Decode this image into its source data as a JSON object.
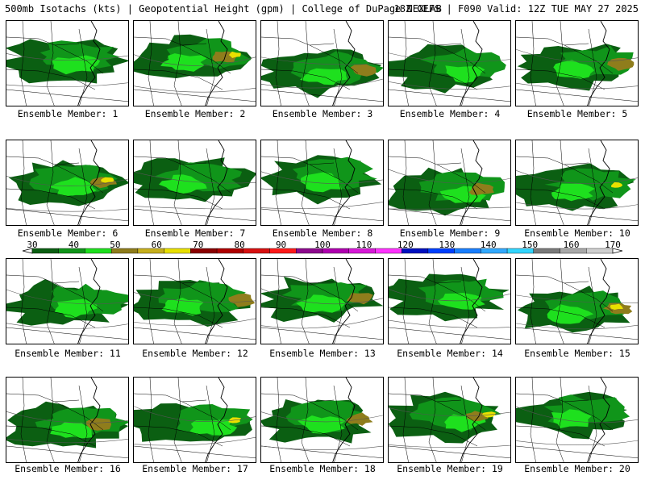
{
  "header": {
    "title_left": "500mb Isotachs (kts) | Geopotential Height (gpm) | College of DuPage NEXLAB",
    "title_right": "18Z GEFS | F090 Valid: 12Z TUE MAY 27 2025"
  },
  "colorbar": {
    "labels": [
      "30",
      "40",
      "50",
      "60",
      "70",
      "80",
      "90",
      "100",
      "110",
      "120",
      "130",
      "140",
      "150",
      "160",
      "170"
    ],
    "colors": [
      "#0b5f12",
      "#10951a",
      "#1ee01e",
      "#8f7d1c",
      "#c7b01e",
      "#e9e000",
      "#8b0000",
      "#b00000",
      "#d81010",
      "#ff1a1a",
      "#8e0a8e",
      "#b000b0",
      "#d81ad8",
      "#ff33ff",
      "#0010c0",
      "#0040ff",
      "#1a7fff",
      "#33aaff",
      "#33d6ff",
      "#7a7a7a",
      "#a9a9a9",
      "#d0d0d0"
    ]
  },
  "panels": [
    {
      "label": "Ensemble Member: 1"
    },
    {
      "label": "Ensemble Member: 2"
    },
    {
      "label": "Ensemble Member: 3"
    },
    {
      "label": "Ensemble Member: 4"
    },
    {
      "label": "Ensemble Member: 5"
    },
    {
      "label": "Ensemble Member: 6"
    },
    {
      "label": "Ensemble Member: 7"
    },
    {
      "label": "Ensemble Member: 8"
    },
    {
      "label": "Ensemble Member: 9"
    },
    {
      "label": "Ensemble Member: 10"
    },
    {
      "label": "Ensemble Member: 11"
    },
    {
      "label": "Ensemble Member: 12"
    },
    {
      "label": "Ensemble Member: 13"
    },
    {
      "label": "Ensemble Member: 14"
    },
    {
      "label": "Ensemble Member: 15"
    },
    {
      "label": "Ensemble Member: 16"
    },
    {
      "label": "Ensemble Member: 17"
    },
    {
      "label": "Ensemble Member: 18"
    },
    {
      "label": "Ensemble Member: 19"
    },
    {
      "label": "Ensemble Member: 20"
    }
  ]
}
